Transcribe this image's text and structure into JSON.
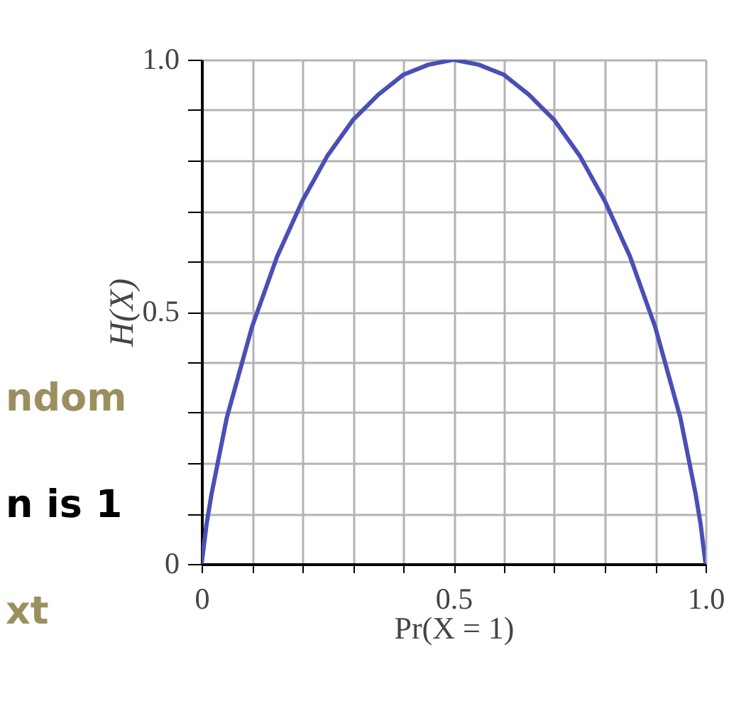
{
  "chart_data": {
    "type": "line",
    "xlabel": "Pr(X = 1)",
    "ylabel": "H(X)",
    "x": [
      0,
      0.01,
      0.02,
      0.05,
      0.1,
      0.15,
      0.2,
      0.25,
      0.3,
      0.35,
      0.4,
      0.45,
      0.5,
      0.55,
      0.6,
      0.65,
      0.7,
      0.75,
      0.8,
      0.85,
      0.9,
      0.95,
      0.98,
      0.99,
      1
    ],
    "series": [
      {
        "color": "#4a4fb5",
        "values": [
          0,
          0.08,
          0.14,
          0.29,
          0.47,
          0.61,
          0.72,
          0.81,
          0.88,
          0.93,
          0.97,
          0.99,
          1.0,
          0.99,
          0.97,
          0.93,
          0.88,
          0.81,
          0.72,
          0.61,
          0.47,
          0.29,
          0.14,
          0.08,
          0
        ]
      }
    ],
    "xlim": [
      0,
      1
    ],
    "ylim": [
      0,
      1
    ],
    "xticks": [
      0,
      {
        "value": 0.1,
        "label": null
      },
      {
        "value": 0.2,
        "label": null
      },
      {
        "value": 0.3,
        "label": null
      },
      {
        "value": 0.4,
        "label": null
      },
      0.5,
      {
        "value": 0.6,
        "label": null
      },
      {
        "value": 0.7,
        "label": null
      },
      {
        "value": 0.8,
        "label": null
      },
      {
        "value": 0.9,
        "label": null
      },
      {
        "value": 1,
        "label": "1.0"
      }
    ],
    "yticks": [
      0,
      {
        "value": 0.1,
        "label": null
      },
      {
        "value": 0.2,
        "label": null
      },
      {
        "value": 0.3,
        "label": null
      },
      {
        "value": 0.4,
        "label": null
      },
      0.5,
      {
        "value": 0.6,
        "label": null
      },
      {
        "value": 0.7,
        "label": null
      },
      {
        "value": 0.8,
        "label": null
      },
      {
        "value": 0.9,
        "label": null
      },
      {
        "value": 1,
        "label": "1.0"
      }
    ],
    "grid": true,
    "marker": "none",
    "line_style": "solid",
    "annotations": [
      "ndom",
      "n is 1",
      "xt"
    ]
  }
}
